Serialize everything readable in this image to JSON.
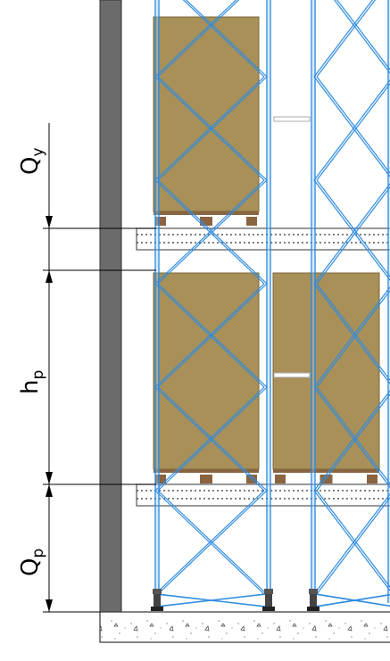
{
  "drawing": {
    "type": "pallet-rack-elevation",
    "colors": {
      "wall": "#6b6b6b",
      "rack": "#2f8ce0",
      "pallet_load": "#a89058",
      "pallet_load_edge": "#7a6838",
      "pallet_base": "#8a6440",
      "beam_outline": "#555555",
      "floor_outline": "#333333"
    },
    "dimensions": [
      {
        "id": "qy",
        "main": "Q",
        "sub": "y"
      },
      {
        "id": "hp",
        "main": "h",
        "sub": "p"
      },
      {
        "id": "qp",
        "main": "Q",
        "sub": "p"
      }
    ],
    "levels": 3,
    "bays": 2
  }
}
